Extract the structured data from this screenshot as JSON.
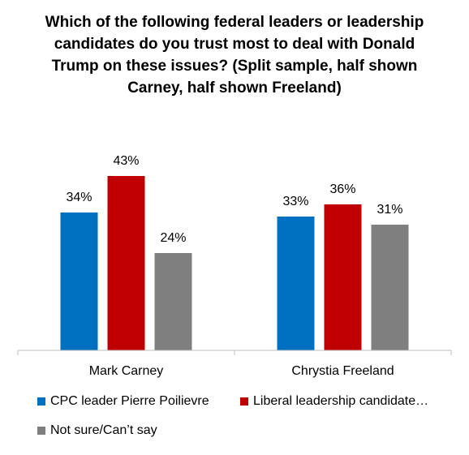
{
  "chart_data": {
    "type": "bar",
    "title": "Which of the following federal leaders or leadership candidates do you trust most to deal with Donald Trump on these issues? (Split sample, half shown Carney, half shown Freeland)",
    "categories": [
      "Mark Carney",
      "Chrystia Freeland"
    ],
    "series": [
      {
        "name": "CPC leader Pierre Poilievre",
        "values": [
          34,
          33
        ],
        "color": "#0070C0"
      },
      {
        "name": "Liberal leadership candidate…",
        "values": [
          43,
          36
        ],
        "color": "#C00000"
      },
      {
        "name": "Not sure/Can’t say",
        "values": [
          24,
          31
        ],
        "color": "#7F7F7F"
      }
    ],
    "value_suffix": "%",
    "ylim": [
      0,
      50
    ],
    "grid": false,
    "legend_position": "bottom"
  }
}
